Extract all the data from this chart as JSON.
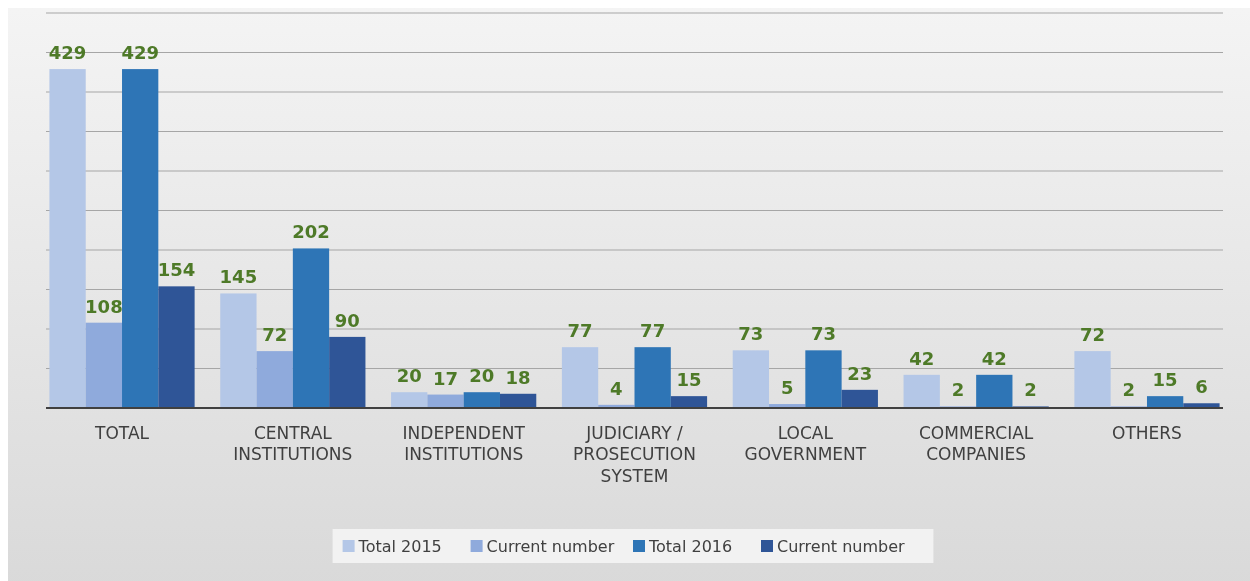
{
  "chart_data": {
    "type": "bar",
    "categories": [
      "TOTAL",
      "CENTRAL INSTITUTIONS",
      "INDEPENDENT INSTITUTIONS",
      "JUDICIARY / PROSECUTION SYSTEM",
      "LOCAL GOVERNMENT",
      "COMMERCIAL COMPANIES",
      "OTHERS"
    ],
    "series": [
      {
        "name": "Total 2015",
        "color": "#b4c7e7",
        "values": [
          429,
          145,
          20,
          77,
          73,
          42,
          72
        ]
      },
      {
        "name": "Current number",
        "color": "#8faadc",
        "values": [
          108,
          72,
          17,
          4,
          5,
          2,
          2
        ]
      },
      {
        "name": "Total 2016",
        "color": "#2e75b6",
        "values": [
          429,
          202,
          20,
          77,
          73,
          42,
          15
        ]
      },
      {
        "name": "Current number",
        "color": "#2f5597",
        "values": [
          154,
          90,
          18,
          15,
          23,
          2,
          6
        ]
      }
    ],
    "ylim": [
      0,
      500
    ],
    "yticks": [
      {
        "value": 0,
        "label": null
      },
      {
        "value": 50,
        "label": null
      },
      {
        "value": 100,
        "label": null
      },
      {
        "value": 150,
        "label": null
      },
      {
        "value": 200,
        "label": null
      },
      {
        "value": 250,
        "label": null
      },
      {
        "value": 300,
        "label": null
      },
      {
        "value": 350,
        "label": null
      },
      {
        "value": 400,
        "label": null
      },
      {
        "value": 450,
        "label": null
      },
      {
        "value": 500,
        "label": null
      }
    ],
    "tick_labels": "x",
    "grid": "y",
    "legend": "bottom",
    "data_labels": true
  }
}
